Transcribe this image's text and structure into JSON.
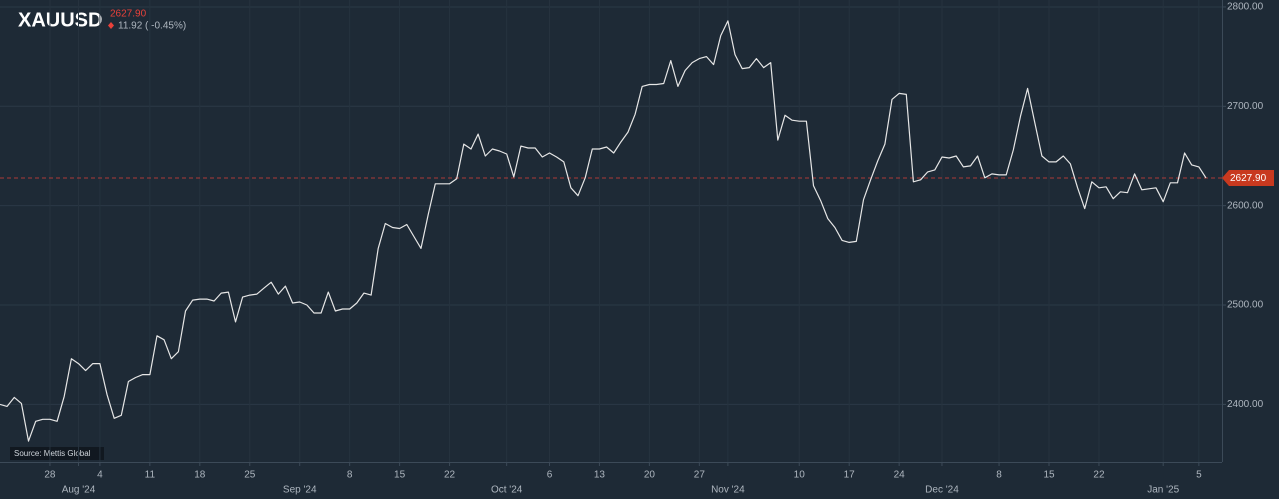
{
  "chart_data": {
    "type": "line",
    "title": "XAUUSD",
    "last_price": {
      "value": 2627.9,
      "label": "2627.90"
    },
    "change_label": "11.92 ( -0.45%)",
    "source": "Source: Mettis Global",
    "color": "#e6e6e6",
    "price_color": "#e8413a",
    "grid": true,
    "ylim": [
      2342,
      2807
    ],
    "yticks": [
      {
        "value": 2400,
        "label": "2400.00"
      },
      {
        "value": 2500,
        "label": "2500.00"
      },
      {
        "value": 2600,
        "label": "2600.00"
      },
      {
        "value": 2700,
        "label": "2700.00"
      },
      {
        "value": 2800,
        "label": "2800.00"
      }
    ],
    "categories": [
      null,
      null,
      null,
      null,
      null,
      null,
      null,
      "28",
      null,
      null,
      null,
      null,
      null,
      null,
      "4",
      null,
      null,
      null,
      null,
      null,
      null,
      "11",
      null,
      null,
      null,
      null,
      null,
      null,
      "18",
      null,
      null,
      null,
      null,
      null,
      null,
      "25",
      null,
      null,
      null,
      null,
      null,
      null,
      null,
      null,
      null,
      null,
      null,
      null,
      null,
      "8",
      null,
      null,
      null,
      null,
      null,
      null,
      "15",
      null,
      null,
      null,
      null,
      null,
      null,
      "22",
      null,
      null,
      null,
      null,
      null,
      null,
      null,
      null,
      null,
      null,
      null,
      null,
      null,
      "6",
      null,
      null,
      null,
      null,
      null,
      null,
      "13",
      null,
      null,
      null,
      null,
      null,
      null,
      "20",
      null,
      null,
      null,
      null,
      null,
      null,
      "27",
      null,
      null,
      null,
      null,
      null,
      null,
      null,
      null,
      null,
      null,
      null,
      null,
      null,
      "10",
      null,
      null,
      null,
      null,
      null,
      null,
      "17",
      null,
      null,
      null,
      null,
      null,
      null,
      "24",
      null,
      null,
      null,
      null,
      null,
      null,
      null,
      null,
      null,
      null,
      null,
      null,
      null,
      "8",
      null,
      null,
      null,
      null,
      null,
      null,
      "15",
      null,
      null,
      null,
      null,
      null,
      null,
      "22",
      null,
      null,
      null,
      null,
      null,
      null,
      null,
      null,
      null,
      null,
      null,
      null,
      null,
      "5",
      null
    ],
    "category_groups": [
      null,
      null,
      null,
      null,
      null,
      null,
      null,
      null,
      null,
      null,
      null,
      "Aug '24",
      null,
      null,
      null,
      null,
      null,
      null,
      null,
      null,
      null,
      null,
      null,
      null,
      null,
      null,
      null,
      null,
      null,
      null,
      null,
      null,
      null,
      null,
      null,
      null,
      null,
      null,
      null,
      null,
      null,
      null,
      "Sep '24",
      null,
      null,
      null,
      null,
      null,
      null,
      null,
      null,
      null,
      null,
      null,
      null,
      null,
      null,
      null,
      null,
      null,
      null,
      null,
      null,
      null,
      null,
      null,
      null,
      null,
      null,
      null,
      null,
      "Oct '24",
      null,
      null,
      null,
      null,
      null,
      null,
      null,
      null,
      null,
      null,
      null,
      null,
      null,
      null,
      null,
      null,
      null,
      null,
      null,
      null,
      null,
      null,
      null,
      null,
      null,
      null,
      null,
      null,
      null,
      null,
      "Nov '24",
      null,
      null,
      null,
      null,
      null,
      null,
      null,
      null,
      null,
      null,
      null,
      null,
      null,
      null,
      null,
      null,
      null,
      null,
      null,
      null,
      null,
      null,
      null,
      null,
      null,
      null,
      null,
      null,
      null,
      "Dec '24",
      null,
      null,
      null,
      null,
      null,
      null,
      null,
      null,
      null,
      null,
      null,
      null,
      null,
      null,
      null,
      null,
      null,
      null,
      null,
      null,
      null,
      null,
      null,
      null,
      null,
      null,
      null,
      null,
      null,
      null,
      "Jan '25",
      null,
      null,
      null,
      null,
      null,
      null
    ],
    "series": [
      {
        "values": [
          2400,
          2398,
          2407,
          2401,
          2363,
          2383,
          2385,
          2385,
          2383,
          2408,
          2446,
          2441,
          2434,
          2441,
          2441,
          2410,
          2386,
          2389,
          2423,
          2427,
          2430,
          2430,
          2469,
          2465,
          2446,
          2453,
          2494,
          2505,
          2506,
          2506,
          2504,
          2512,
          2513,
          2483,
          2508,
          2510,
          2511,
          2517,
          2523,
          2511,
          2519,
          2502,
          2503,
          2500,
          2492,
          2492,
          2513,
          2494,
          2496,
          2496,
          2502,
          2512,
          2510,
          2557,
          2582,
          2578,
          2577,
          2581,
          2569,
          2557,
          2591,
          2622,
          2622,
          2622,
          2627,
          2662,
          2657,
          2672,
          2650,
          2657,
          2655,
          2652,
          2629,
          2660,
          2658,
          2658,
          2649,
          2653,
          2649,
          2644,
          2618,
          2610,
          2628,
          2657,
          2657,
          2659,
          2653,
          2664,
          2674,
          2692,
          2720,
          2722,
          2722,
          2723,
          2746,
          2720,
          2736,
          2744,
          2748,
          2750,
          2742,
          2771,
          2786,
          2752,
          2738,
          2739,
          2748,
          2739,
          2744,
          2666,
          2691,
          2686,
          2685,
          2685,
          2620,
          2605,
          2587,
          2578,
          2565,
          2563,
          2564,
          2606,
          2626,
          2645,
          2662,
          2707,
          2713,
          2712,
          2624,
          2626,
          2634,
          2636,
          2649,
          2648,
          2650,
          2639,
          2640,
          2650,
          2628,
          2632,
          2631,
          2631,
          2656,
          2690,
          2718,
          2684,
          2650,
          2644,
          2644,
          2650,
          2642,
          2618,
          2597,
          2624,
          2618,
          2619,
          2607,
          2614,
          2613,
          2632,
          2616,
          2617,
          2618,
          2604,
          2623,
          2623,
          2653,
          2641,
          2639,
          2627.9
        ]
      }
    ]
  }
}
